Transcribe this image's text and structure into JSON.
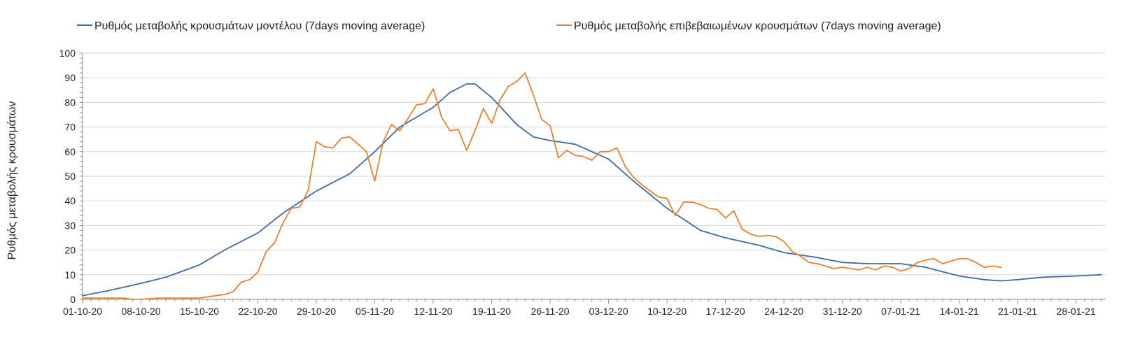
{
  "chart_data": {
    "type": "line",
    "title": "",
    "xlabel": "",
    "ylabel": "Ρυθμός μεταβολής κρουσμάτων",
    "ylim": [
      0,
      100
    ],
    "yticks": [
      0,
      10,
      20,
      30,
      40,
      50,
      60,
      70,
      80,
      90,
      100
    ],
    "x_start": "01-10-20",
    "x_tick_labels": [
      "01-10-20",
      "08-10-20",
      "15-10-20",
      "22-10-20",
      "29-10-20",
      "05-11-20",
      "12-11-20",
      "19-11-20",
      "26-11-20",
      "03-12-20",
      "10-12-20",
      "17-12-20",
      "24-12-20",
      "31-12-20",
      "07-01-21",
      "14-01-21",
      "21-01-21",
      "28-01-21"
    ],
    "grid": "horizontal",
    "legend_position": "top",
    "series": [
      {
        "name": "Ρυθμός μεταβολής κρουσμάτων μοντέλου (7days moving average)",
        "color": "#3e6aa6",
        "dates": [
          "01-10-20",
          "04-10-20",
          "08-10-20",
          "11-10-20",
          "15-10-20",
          "18-10-20",
          "22-10-20",
          "25-10-20",
          "29-10-20",
          "02-11-20",
          "05-11-20",
          "08-11-20",
          "12-11-20",
          "14-11-20",
          "16-11-20",
          "17-11-20",
          "19-11-20",
          "22-11-20",
          "24-11-20",
          "26-11-20",
          "29-11-20",
          "03-12-20",
          "06-12-20",
          "10-12-20",
          "14-12-20",
          "17-12-20",
          "21-12-20",
          "24-12-20",
          "28-12-20",
          "31-12-20",
          "03-01-21",
          "07-01-21",
          "10-01-21",
          "14-01-21",
          "17-01-21",
          "19-01-21",
          "21-01-21",
          "24-01-21",
          "28-01-21",
          "31-01-21"
        ],
        "values": [
          1.5,
          3.5,
          6.5,
          9,
          14,
          20,
          27,
          35,
          44,
          51,
          60,
          70,
          78,
          84,
          87.5,
          87.5,
          82,
          71,
          66,
          64.5,
          63,
          57,
          48,
          37,
          28,
          25,
          22,
          19,
          17,
          15,
          14.5,
          14.5,
          13,
          9.5,
          8,
          7.5,
          8,
          9,
          9.5,
          10
        ]
      },
      {
        "name": "Ρυθμός μεταβολής επιβεβαιωμένων κρουσμάτων (7days moving average)",
        "color": "#e8822e",
        "dates": [
          "01-10-20",
          "06-10-20",
          "07-10-20",
          "08-10-20",
          "10-10-20",
          "15-10-20",
          "17-10-20",
          "18-10-20",
          "19-10-20",
          "20-10-20",
          "21-10-20",
          "22-10-20",
          "23-10-20",
          "24-10-20",
          "25-10-20",
          "26-10-20",
          "27-10-20",
          "28-10-20",
          "29-10-20",
          "30-10-20",
          "31-10-20",
          "01-11-20",
          "02-11-20",
          "03-11-20",
          "04-11-20",
          "05-11-20",
          "06-11-20",
          "07-11-20",
          "08-11-20",
          "09-11-20",
          "10-11-20",
          "11-11-20",
          "12-11-20",
          "13-11-20",
          "14-11-20",
          "15-11-20",
          "16-11-20",
          "17-11-20",
          "18-11-20",
          "19-11-20",
          "20-11-20",
          "21-11-20",
          "22-11-20",
          "23-11-20",
          "24-11-20",
          "25-11-20",
          "26-11-20",
          "27-11-20",
          "28-11-20",
          "29-11-20",
          "30-11-20",
          "01-12-20",
          "02-12-20",
          "03-12-20",
          "04-12-20",
          "05-12-20",
          "06-12-20",
          "07-12-20",
          "08-12-20",
          "09-12-20",
          "10-12-20",
          "11-12-20",
          "12-12-20",
          "13-12-20",
          "14-12-20",
          "15-12-20",
          "16-12-20",
          "17-12-20",
          "18-12-20",
          "19-12-20",
          "20-12-20",
          "21-12-20",
          "22-12-20",
          "23-12-20",
          "24-12-20",
          "25-12-20",
          "26-12-20",
          "27-12-20",
          "28-12-20",
          "29-12-20",
          "30-12-20",
          "31-12-20",
          "01-01-21",
          "02-01-21",
          "03-01-21",
          "04-01-21",
          "05-01-21",
          "06-01-21",
          "07-01-21",
          "08-01-21",
          "09-01-21",
          "10-01-21",
          "11-01-21",
          "12-01-21",
          "13-01-21",
          "14-01-21",
          "15-01-21",
          "16-01-21",
          "17-01-21",
          "18-01-21",
          "19-01-21"
        ],
        "values": [
          0.5,
          0.5,
          0,
          0,
          0.5,
          0.5,
          1.5,
          2,
          3,
          7,
          8,
          11,
          19.5,
          23,
          31,
          37,
          37.5,
          44,
          64,
          62,
          61.5,
          65.5,
          66,
          63,
          60,
          48,
          64,
          71,
          68.5,
          73.5,
          79,
          79.5,
          85.5,
          74,
          68.5,
          69,
          60.5,
          68.5,
          77.5,
          71.5,
          81,
          86.5,
          88.5,
          92,
          83,
          73,
          70.5,
          57.5,
          60.5,
          58.5,
          58,
          56.5,
          60,
          60,
          61.5,
          54,
          49.5,
          46.5,
          44,
          41.5,
          41,
          34,
          39.5,
          39.5,
          38.5,
          37,
          36.5,
          33,
          36,
          28.5,
          26.5,
          25.5,
          26,
          25.5,
          23.5,
          19.5,
          17.5,
          15,
          14.5,
          13.5,
          12.5,
          13,
          12.5,
          12,
          13,
          12,
          13.5,
          13,
          11.5,
          12.5,
          15,
          16,
          16.5,
          14.5,
          15.5,
          16.5,
          16.5,
          15,
          13,
          13.5,
          13
        ]
      }
    ]
  }
}
